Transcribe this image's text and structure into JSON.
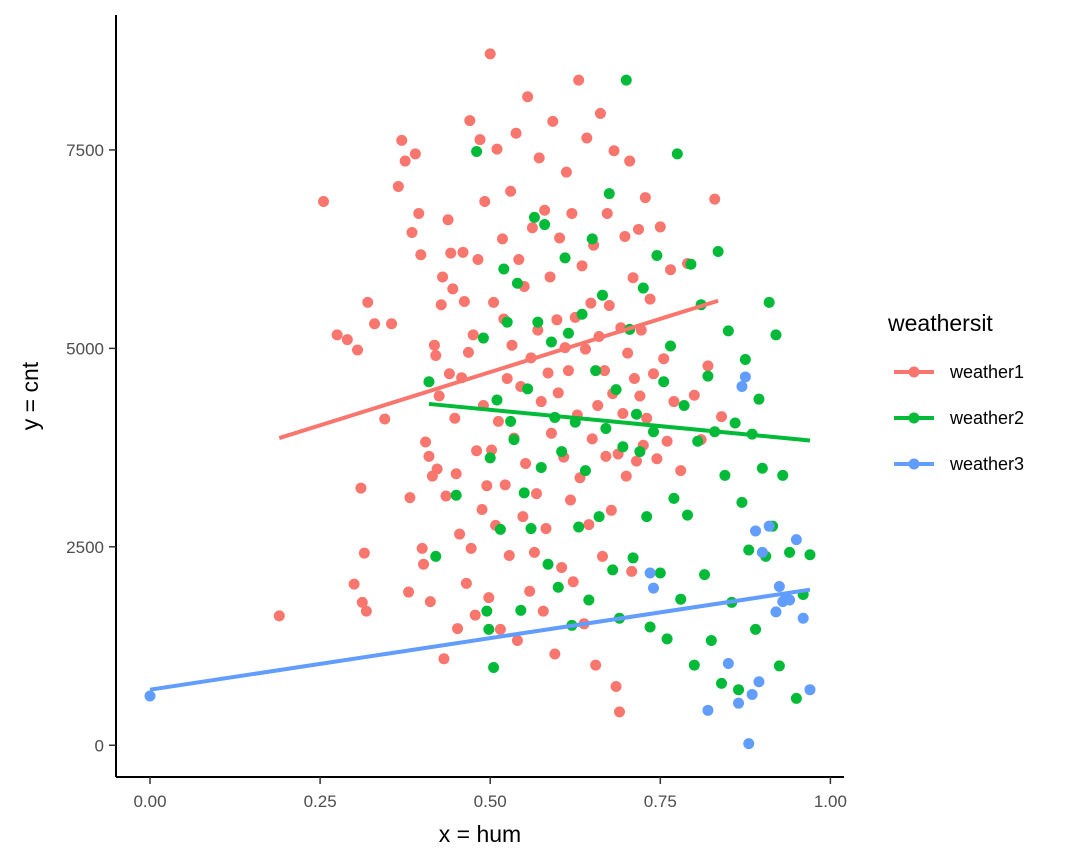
{
  "chart_data": {
    "type": "scatter",
    "title": "",
    "xlabel": "x = hum",
    "ylabel": "y = cnt",
    "xlim": [
      -0.05,
      1.02
    ],
    "ylim": [
      -400,
      9200
    ],
    "xticks": [
      0.0,
      0.25,
      0.5,
      0.75,
      1.0
    ],
    "xtick_labels": [
      "0.00",
      "0.25",
      "0.50",
      "0.75",
      "1.00"
    ],
    "yticks": [
      0,
      2500,
      5000,
      7500
    ],
    "ytick_labels": [
      "0",
      "2500",
      "5000",
      "7500"
    ],
    "grid": false,
    "legend": {
      "title": "weathersit",
      "position": "right"
    },
    "series": [
      {
        "name": "weather1",
        "color": "#F8766D",
        "trend": {
          "x": [
            0.19,
            0.835
          ],
          "y": [
            3870,
            5600
          ]
        },
        "points": [
          [
            0.19,
            1630
          ],
          [
            0.255,
            6850
          ],
          [
            0.275,
            5170
          ],
          [
            0.29,
            5110
          ],
          [
            0.3,
            2030
          ],
          [
            0.305,
            4980
          ],
          [
            0.31,
            3240
          ],
          [
            0.312,
            1800
          ],
          [
            0.315,
            2420
          ],
          [
            0.318,
            1690
          ],
          [
            0.32,
            5580
          ],
          [
            0.33,
            5310
          ],
          [
            0.345,
            4110
          ],
          [
            0.355,
            5310
          ],
          [
            0.365,
            7040
          ],
          [
            0.37,
            7620
          ],
          [
            0.375,
            7360
          ],
          [
            0.38,
            1930
          ],
          [
            0.382,
            3120
          ],
          [
            0.385,
            6460
          ],
          [
            0.39,
            7450
          ],
          [
            0.395,
            6700
          ],
          [
            0.398,
            6180
          ],
          [
            0.4,
            2480
          ],
          [
            0.402,
            2280
          ],
          [
            0.405,
            3820
          ],
          [
            0.41,
            3640
          ],
          [
            0.412,
            1810
          ],
          [
            0.415,
            3390
          ],
          [
            0.418,
            5040
          ],
          [
            0.42,
            4910
          ],
          [
            0.422,
            3480
          ],
          [
            0.425,
            4400
          ],
          [
            0.428,
            5550
          ],
          [
            0.43,
            5900
          ],
          [
            0.432,
            1090
          ],
          [
            0.435,
            3140
          ],
          [
            0.438,
            6620
          ],
          [
            0.44,
            4680
          ],
          [
            0.442,
            6200
          ],
          [
            0.445,
            5750
          ],
          [
            0.448,
            4120
          ],
          [
            0.45,
            3420
          ],
          [
            0.452,
            1470
          ],
          [
            0.455,
            2660
          ],
          [
            0.458,
            4630
          ],
          [
            0.46,
            6210
          ],
          [
            0.462,
            5590
          ],
          [
            0.465,
            2040
          ],
          [
            0.468,
            4950
          ],
          [
            0.47,
            7870
          ],
          [
            0.472,
            2480
          ],
          [
            0.475,
            5170
          ],
          [
            0.478,
            1640
          ],
          [
            0.48,
            3710
          ],
          [
            0.482,
            6120
          ],
          [
            0.485,
            7630
          ],
          [
            0.488,
            2970
          ],
          [
            0.49,
            4280
          ],
          [
            0.492,
            6850
          ],
          [
            0.495,
            3270
          ],
          [
            0.498,
            1860
          ],
          [
            0.5,
            8710
          ],
          [
            0.502,
            3720
          ],
          [
            0.505,
            5580
          ],
          [
            0.508,
            2770
          ],
          [
            0.51,
            7510
          ],
          [
            0.512,
            4080
          ],
          [
            0.515,
            1460
          ],
          [
            0.518,
            6380
          ],
          [
            0.52,
            5370
          ],
          [
            0.522,
            3280
          ],
          [
            0.525,
            4620
          ],
          [
            0.528,
            2390
          ],
          [
            0.53,
            6980
          ],
          [
            0.532,
            5040
          ],
          [
            0.535,
            3870
          ],
          [
            0.538,
            7710
          ],
          [
            0.54,
            1320
          ],
          [
            0.542,
            6120
          ],
          [
            0.545,
            4520
          ],
          [
            0.548,
            2880
          ],
          [
            0.55,
            5780
          ],
          [
            0.552,
            3550
          ],
          [
            0.555,
            8170
          ],
          [
            0.558,
            1940
          ],
          [
            0.56,
            4880
          ],
          [
            0.562,
            6520
          ],
          [
            0.565,
            2430
          ],
          [
            0.568,
            3170
          ],
          [
            0.57,
            5230
          ],
          [
            0.572,
            7400
          ],
          [
            0.575,
            4330
          ],
          [
            0.578,
            1690
          ],
          [
            0.58,
            6740
          ],
          [
            0.582,
            2730
          ],
          [
            0.585,
            4690
          ],
          [
            0.588,
            5900
          ],
          [
            0.59,
            3930
          ],
          [
            0.592,
            7860
          ],
          [
            0.595,
            1150
          ],
          [
            0.598,
            5360
          ],
          [
            0.6,
            4440
          ],
          [
            0.602,
            6390
          ],
          [
            0.605,
            2240
          ],
          [
            0.608,
            3630
          ],
          [
            0.61,
            5010
          ],
          [
            0.612,
            7220
          ],
          [
            0.615,
            4720
          ],
          [
            0.618,
            3090
          ],
          [
            0.62,
            6700
          ],
          [
            0.622,
            2060
          ],
          [
            0.625,
            5390
          ],
          [
            0.628,
            4160
          ],
          [
            0.63,
            8380
          ],
          [
            0.632,
            3370
          ],
          [
            0.635,
            6040
          ],
          [
            0.638,
            1530
          ],
          [
            0.64,
            4990
          ],
          [
            0.642,
            7650
          ],
          [
            0.645,
            2780
          ],
          [
            0.648,
            5570
          ],
          [
            0.65,
            3860
          ],
          [
            0.652,
            6300
          ],
          [
            0.655,
            1010
          ],
          [
            0.658,
            4280
          ],
          [
            0.66,
            5150
          ],
          [
            0.662,
            7960
          ],
          [
            0.665,
            2380
          ],
          [
            0.668,
            4720
          ],
          [
            0.67,
            3640
          ],
          [
            0.672,
            6700
          ],
          [
            0.675,
            5540
          ],
          [
            0.678,
            2960
          ],
          [
            0.68,
            4430
          ],
          [
            0.682,
            7490
          ],
          [
            0.685,
            740
          ],
          [
            0.688,
            3670
          ],
          [
            0.69,
            420
          ],
          [
            0.692,
            5260
          ],
          [
            0.695,
            4180
          ],
          [
            0.698,
            6410
          ],
          [
            0.7,
            3390
          ],
          [
            0.702,
            4940
          ],
          [
            0.705,
            7360
          ],
          [
            0.708,
            2190
          ],
          [
            0.71,
            5890
          ],
          [
            0.712,
            4620
          ],
          [
            0.715,
            3580
          ],
          [
            0.718,
            6500
          ],
          [
            0.72,
            4400
          ],
          [
            0.722,
            5230
          ],
          [
            0.725,
            3780
          ],
          [
            0.728,
            6900
          ],
          [
            0.73,
            4120
          ],
          [
            0.735,
            5620
          ],
          [
            0.74,
            4680
          ],
          [
            0.745,
            3610
          ],
          [
            0.75,
            6530
          ],
          [
            0.755,
            4870
          ],
          [
            0.76,
            3830
          ],
          [
            0.765,
            5990
          ],
          [
            0.77,
            4330
          ],
          [
            0.78,
            3460
          ],
          [
            0.79,
            6070
          ],
          [
            0.8,
            4410
          ],
          [
            0.81,
            3850
          ],
          [
            0.82,
            4780
          ],
          [
            0.83,
            6880
          ],
          [
            0.84,
            4140
          ]
        ]
      },
      {
        "name": "weather2",
        "color": "#00BA38",
        "trend": {
          "x": [
            0.41,
            0.97
          ],
          "y": [
            4300,
            3840
          ]
        },
        "points": [
          [
            0.41,
            4580
          ],
          [
            0.42,
            2380
          ],
          [
            0.45,
            3150
          ],
          [
            0.48,
            7480
          ],
          [
            0.49,
            5130
          ],
          [
            0.495,
            1690
          ],
          [
            0.498,
            1460
          ],
          [
            0.5,
            3620
          ],
          [
            0.505,
            980
          ],
          [
            0.51,
            4350
          ],
          [
            0.515,
            2720
          ],
          [
            0.52,
            6000
          ],
          [
            0.525,
            5330
          ],
          [
            0.53,
            4080
          ],
          [
            0.535,
            3850
          ],
          [
            0.54,
            5820
          ],
          [
            0.545,
            1700
          ],
          [
            0.55,
            3180
          ],
          [
            0.555,
            4490
          ],
          [
            0.56,
            2730
          ],
          [
            0.565,
            6650
          ],
          [
            0.57,
            5330
          ],
          [
            0.575,
            3500
          ],
          [
            0.58,
            6560
          ],
          [
            0.585,
            2280
          ],
          [
            0.59,
            5080
          ],
          [
            0.595,
            4130
          ],
          [
            0.6,
            1990
          ],
          [
            0.605,
            3700
          ],
          [
            0.61,
            6140
          ],
          [
            0.615,
            5190
          ],
          [
            0.62,
            1510
          ],
          [
            0.625,
            4070
          ],
          [
            0.63,
            2750
          ],
          [
            0.635,
            5430
          ],
          [
            0.64,
            3460
          ],
          [
            0.645,
            1830
          ],
          [
            0.65,
            6380
          ],
          [
            0.655,
            4720
          ],
          [
            0.66,
            2880
          ],
          [
            0.665,
            5670
          ],
          [
            0.67,
            3990
          ],
          [
            0.675,
            6950
          ],
          [
            0.68,
            2210
          ],
          [
            0.685,
            4480
          ],
          [
            0.69,
            1600
          ],
          [
            0.695,
            3760
          ],
          [
            0.7,
            8380
          ],
          [
            0.705,
            5240
          ],
          [
            0.71,
            2360
          ],
          [
            0.715,
            4170
          ],
          [
            0.72,
            3700
          ],
          [
            0.725,
            5760
          ],
          [
            0.73,
            2880
          ],
          [
            0.735,
            1490
          ],
          [
            0.74,
            3950
          ],
          [
            0.745,
            6170
          ],
          [
            0.75,
            2170
          ],
          [
            0.755,
            4580
          ],
          [
            0.76,
            1340
          ],
          [
            0.765,
            5030
          ],
          [
            0.77,
            3110
          ],
          [
            0.775,
            7450
          ],
          [
            0.78,
            1840
          ],
          [
            0.785,
            4280
          ],
          [
            0.79,
            2900
          ],
          [
            0.795,
            6060
          ],
          [
            0.8,
            1010
          ],
          [
            0.805,
            3830
          ],
          [
            0.81,
            5550
          ],
          [
            0.815,
            2150
          ],
          [
            0.82,
            4650
          ],
          [
            0.825,
            1320
          ],
          [
            0.83,
            3950
          ],
          [
            0.835,
            6220
          ],
          [
            0.84,
            780
          ],
          [
            0.845,
            3400
          ],
          [
            0.85,
            5220
          ],
          [
            0.855,
            1800
          ],
          [
            0.86,
            4060
          ],
          [
            0.865,
            700
          ],
          [
            0.87,
            3060
          ],
          [
            0.875,
            4860
          ],
          [
            0.88,
            2460
          ],
          [
            0.885,
            3920
          ],
          [
            0.89,
            1460
          ],
          [
            0.895,
            4360
          ],
          [
            0.9,
            3490
          ],
          [
            0.905,
            2380
          ],
          [
            0.91,
            5580
          ],
          [
            0.915,
            2760
          ],
          [
            0.92,
            5170
          ],
          [
            0.925,
            1000
          ],
          [
            0.93,
            3400
          ],
          [
            0.94,
            2430
          ],
          [
            0.95,
            590
          ],
          [
            0.96,
            1900
          ],
          [
            0.97,
            2400
          ]
        ]
      },
      {
        "name": "weather3",
        "color": "#619CFF",
        "trend": {
          "x": [
            0.0,
            0.97
          ],
          "y": [
            700,
            1960
          ]
        },
        "points": [
          [
            0.0,
            620
          ],
          [
            0.735,
            2170
          ],
          [
            0.74,
            1980
          ],
          [
            0.82,
            440
          ],
          [
            0.85,
            1030
          ],
          [
            0.865,
            530
          ],
          [
            0.87,
            4520
          ],
          [
            0.875,
            4640
          ],
          [
            0.88,
            20
          ],
          [
            0.885,
            640
          ],
          [
            0.89,
            2700
          ],
          [
            0.895,
            800
          ],
          [
            0.9,
            2430
          ],
          [
            0.91,
            2760
          ],
          [
            0.92,
            1680
          ],
          [
            0.925,
            2000
          ],
          [
            0.93,
            1810
          ],
          [
            0.935,
            1860
          ],
          [
            0.94,
            1830
          ],
          [
            0.95,
            2590
          ],
          [
            0.96,
            1600
          ],
          [
            0.97,
            700
          ]
        ]
      }
    ]
  }
}
